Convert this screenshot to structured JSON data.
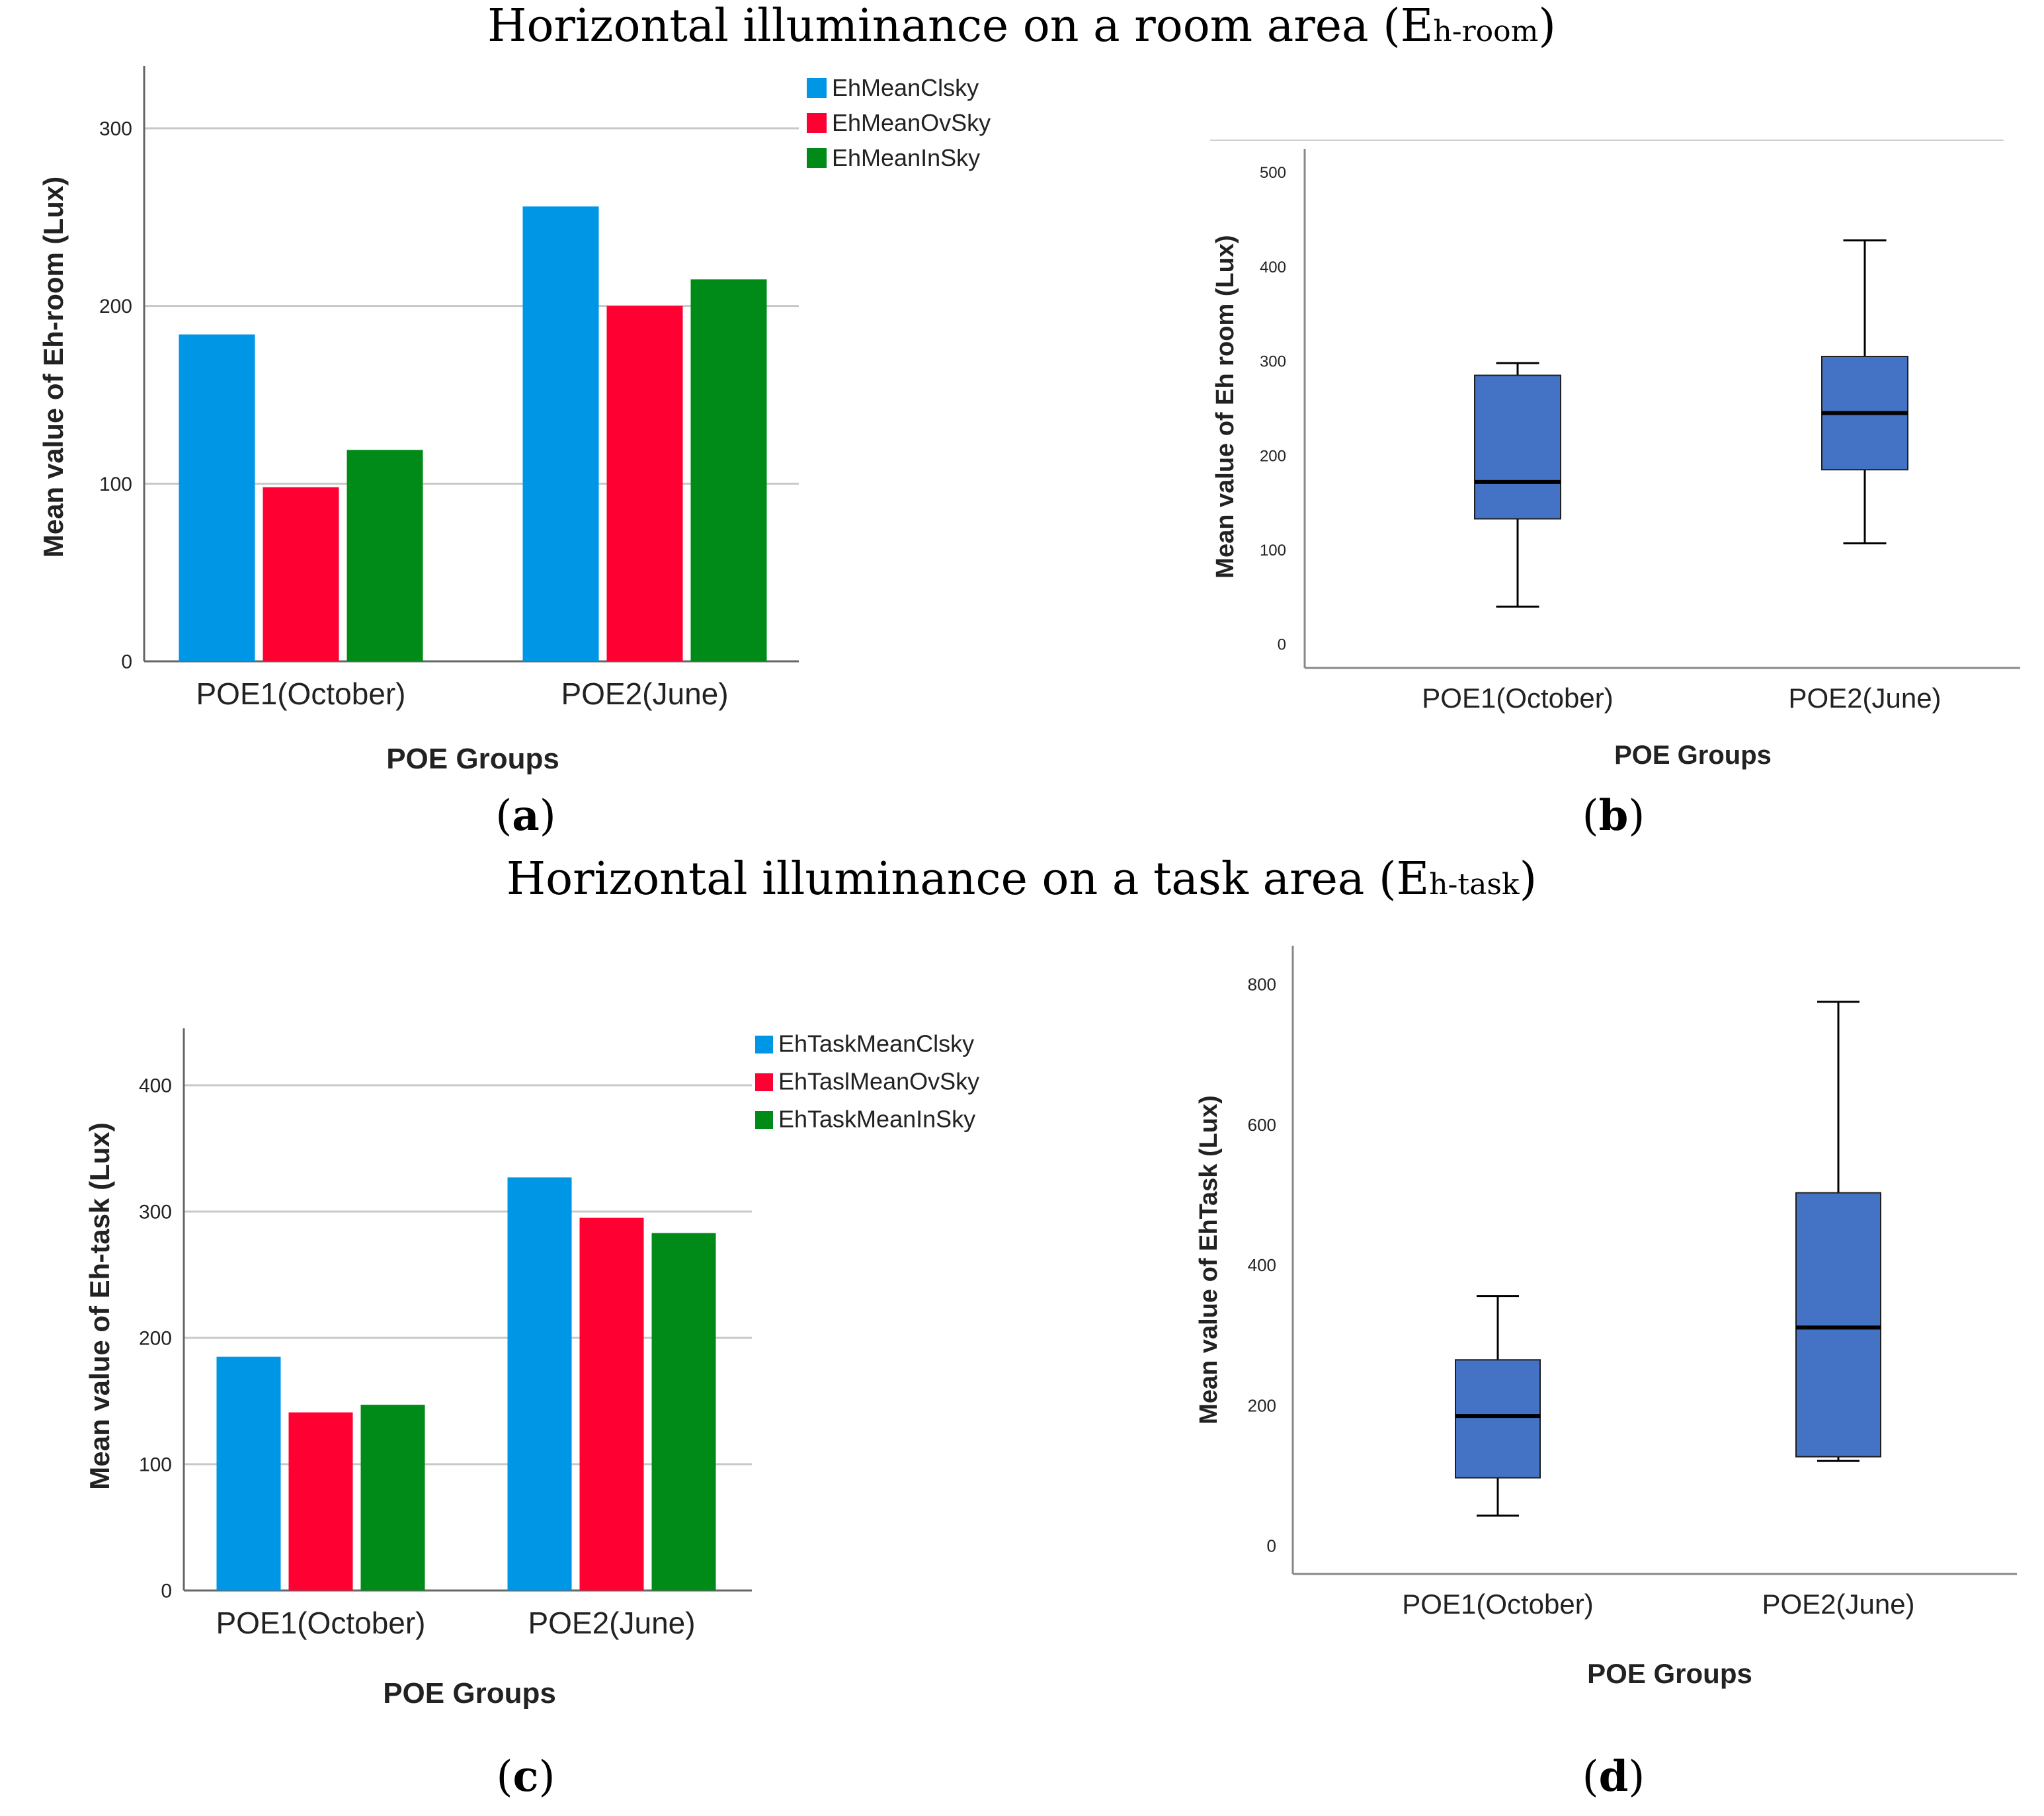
{
  "sections": [
    {
      "title_main": "Horizontal illuminance on a room area (E",
      "title_sub": "h-room",
      "title_end": ")"
    },
    {
      "title_main": "Horizontal illuminance on a task area (E",
      "title_sub": "h-task",
      "title_end": ")"
    }
  ],
  "panel_labels": [
    {
      "open": "(",
      "letter": "a",
      "close": ")"
    },
    {
      "open": "(",
      "letter": "b",
      "close": ")"
    },
    {
      "open": "(",
      "letter": "c",
      "close": ")"
    },
    {
      "open": "(",
      "letter": "d",
      "close": ")"
    }
  ],
  "chart_data": [
    {
      "id": "a",
      "type": "bar",
      "categories": [
        "POE1(October)",
        "POE2(June)"
      ],
      "series": [
        {
          "name": "EhMeanClsky",
          "values": [
            184,
            256
          ],
          "color": "#0096e6"
        },
        {
          "name": "EhMeanOvSky",
          "values": [
            98,
            200
          ],
          "color": "#ff0033"
        },
        {
          "name": "EhMeanInSky",
          "values": [
            119,
            215
          ],
          "color": "#008a17"
        }
      ],
      "xlabel": "POE Groups",
      "ylabel": "Mean value of Eh-room (Lux)",
      "ylim": [
        0,
        335
      ],
      "yticks": [
        "0",
        "100",
        "200",
        "300"
      ],
      "grid": true,
      "legend": "top-right"
    },
    {
      "id": "b",
      "type": "boxplot",
      "categories": [
        "POE1(October)",
        "POE2(June)"
      ],
      "boxes": [
        {
          "min": 40,
          "q1": 133,
          "median": 172,
          "q3": 285,
          "max": 298
        },
        {
          "min": 107,
          "q1": 185,
          "median": 245,
          "q3": 305,
          "max": 428
        }
      ],
      "box_color": "#4472c4",
      "xlabel": "POE Groups",
      "ylabel": "Mean value of Eh room (Lux)",
      "ylim": [
        -25,
        525
      ],
      "yticks": [
        "0",
        "100",
        "200",
        "300",
        "400",
        "500"
      ]
    },
    {
      "id": "c",
      "type": "bar",
      "categories": [
        "POE1(October)",
        "POE2(June)"
      ],
      "series": [
        {
          "name": "EhTaskMeanClsky",
          "values": [
            185,
            327
          ],
          "color": "#0096e6"
        },
        {
          "name": "EhTaslMeanOvSky",
          "values": [
            141,
            295
          ],
          "color": "#ff0033"
        },
        {
          "name": "EhTaskMeanInSky",
          "values": [
            147,
            283
          ],
          "color": "#008a17"
        }
      ],
      "xlabel": "POE Groups",
      "ylabel": "Mean value of Eh-task (Lux)",
      "ylim": [
        0,
        445
      ],
      "yticks": [
        "0",
        "100",
        "200",
        "300",
        "400"
      ],
      "grid": true,
      "legend": "top-right"
    },
    {
      "id": "d",
      "type": "boxplot",
      "categories": [
        "POE1(October)",
        "POE2(June)"
      ],
      "boxes": [
        {
          "min": 43,
          "q1": 97,
          "median": 185,
          "q3": 265,
          "max": 356
        },
        {
          "min": 121,
          "q1": 127,
          "median": 311,
          "q3": 503,
          "max": 775
        }
      ],
      "box_color": "#4472c4",
      "xlabel": "POE Groups",
      "ylabel": "Mean value of EhTask (Lux)",
      "ylim": [
        -40,
        855
      ],
      "yticks": [
        "0",
        "200",
        "400",
        "600",
        "800"
      ]
    }
  ]
}
